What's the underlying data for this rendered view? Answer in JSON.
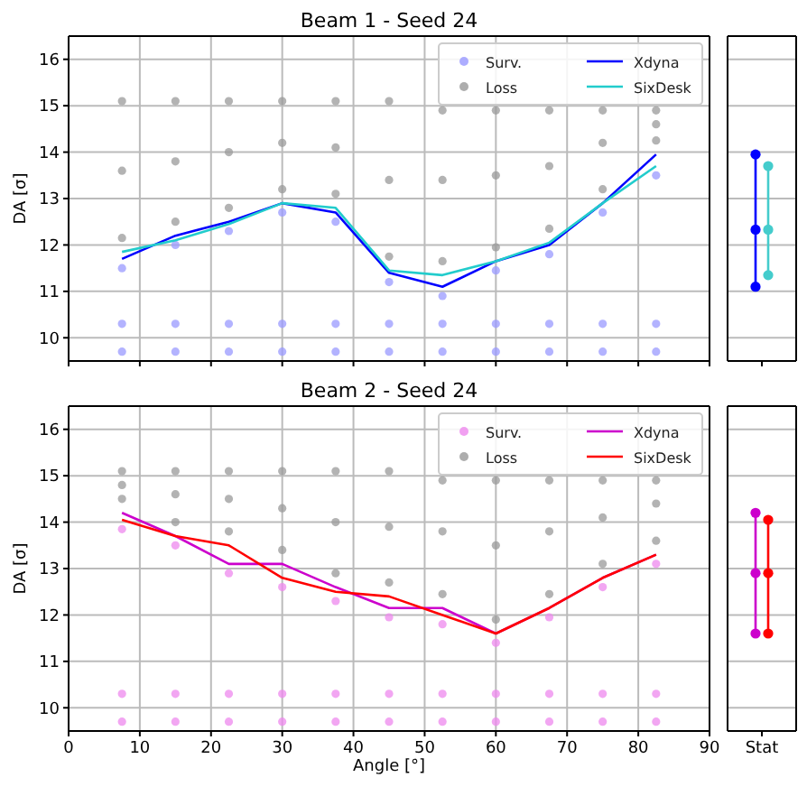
{
  "chart_data": [
    {
      "type": "scatter",
      "title": "Beam 1 - Seed 24",
      "ylabel": "DA [σ]",
      "xlim": [
        0,
        90
      ],
      "xticks": [
        0,
        10,
        20,
        30,
        40,
        50,
        60,
        70,
        80,
        90
      ],
      "ylim": [
        9.5,
        16.5
      ],
      "yticks": [
        10,
        11,
        12,
        13,
        14,
        15,
        16
      ],
      "grid": true,
      "legend": "top right",
      "tick_labels": "y",
      "series": [
        {
          "name": "Surv.",
          "color": "#9999ff",
          "marker": "circle",
          "x": [
            7.5,
            7.5,
            7.5,
            15,
            15,
            15,
            22.5,
            22.5,
            22.5,
            30,
            30,
            30,
            37.5,
            37.5,
            37.5,
            45,
            45,
            45,
            52.5,
            52.5,
            52.5,
            60,
            60,
            60,
            67.5,
            67.5,
            67.5,
            75,
            75,
            75,
            82.5,
            82.5,
            82.5
          ],
          "values": [
            9.7,
            10.3,
            11.5,
            9.7,
            10.3,
            12.0,
            9.7,
            10.3,
            12.3,
            9.7,
            10.3,
            12.7,
            9.7,
            10.3,
            12.5,
            9.7,
            10.3,
            11.2,
            9.7,
            10.3,
            10.9,
            9.7,
            10.3,
            11.45,
            9.7,
            10.3,
            11.8,
            9.7,
            10.3,
            12.7,
            9.7,
            10.3,
            13.5
          ]
        },
        {
          "name": "Loss",
          "color": "#999999",
          "marker": "circle",
          "x": [
            7.5,
            7.5,
            7.5,
            15,
            15,
            15,
            22.5,
            22.5,
            22.5,
            30,
            30,
            30,
            37.5,
            37.5,
            37.5,
            45,
            45,
            45,
            52.5,
            52.5,
            52.5,
            60,
            60,
            60,
            67.5,
            67.5,
            67.5,
            75,
            75,
            75,
            82.5,
            82.5,
            82.5
          ],
          "values": [
            12.15,
            13.6,
            15.1,
            12.5,
            13.8,
            15.1,
            12.8,
            14.0,
            15.1,
            13.2,
            14.2,
            15.1,
            13.1,
            14.1,
            15.1,
            11.75,
            13.4,
            15.1,
            11.65,
            13.4,
            14.9,
            11.95,
            13.5,
            14.9,
            12.35,
            13.7,
            14.9,
            13.2,
            14.2,
            14.9,
            14.25,
            14.6,
            14.9
          ]
        },
        {
          "name": "Xdyna",
          "type": "line",
          "color": "#0000ff",
          "marker": "none",
          "x": [
            7.5,
            15,
            22.5,
            30,
            37.5,
            45,
            52.5,
            60,
            67.5,
            75,
            82.5
          ],
          "values": [
            11.7,
            12.2,
            12.5,
            12.9,
            12.7,
            11.4,
            11.1,
            11.65,
            12.0,
            12.9,
            13.95
          ]
        },
        {
          "name": "SixDesk",
          "type": "line",
          "color": "#22cccc",
          "marker": "none",
          "x": [
            7.5,
            15,
            22.5,
            30,
            37.5,
            45,
            52.5,
            60,
            67.5,
            75,
            82.5
          ],
          "values": [
            11.85,
            12.1,
            12.45,
            12.9,
            12.8,
            11.45,
            11.35,
            11.65,
            12.05,
            12.9,
            13.7
          ]
        }
      ]
    },
    {
      "type": "line",
      "categories": [
        "Stat"
      ],
      "ylim": [
        9.5,
        16.5
      ],
      "yticks": [
        10,
        11,
        12,
        13,
        14,
        15,
        16
      ],
      "grid": true,
      "tick_labels": false,
      "marker": "circle",
      "series": [
        {
          "color": "#0000ff",
          "x": [
            "Stat",
            "Stat",
            "Stat"
          ],
          "values": [
            11.1,
            12.33,
            13.95
          ]
        },
        {
          "color": "#44cccc",
          "x": [
            "Stat",
            "Stat",
            "Stat"
          ],
          "values": [
            11.35,
            12.33,
            13.7
          ]
        }
      ]
    },
    {
      "type": "scatter",
      "title": "Beam 2 - Seed 24",
      "xlabel": "Angle [°]",
      "ylabel": "DA [σ]",
      "xlim": [
        0,
        90
      ],
      "xticks": [
        0,
        10,
        20,
        30,
        40,
        50,
        60,
        70,
        80,
        90
      ],
      "ylim": [
        9.5,
        16.5
      ],
      "yticks": [
        10,
        11,
        12,
        13,
        14,
        15,
        16
      ],
      "grid": true,
      "legend": "top right",
      "series": [
        {
          "name": "Surv.",
          "color": "#ee88ee",
          "marker": "circle",
          "x": [
            7.5,
            7.5,
            7.5,
            15,
            15,
            15,
            22.5,
            22.5,
            22.5,
            30,
            30,
            30,
            37.5,
            37.5,
            37.5,
            45,
            45,
            45,
            52.5,
            52.5,
            52.5,
            60,
            60,
            60,
            67.5,
            67.5,
            67.5,
            75,
            75,
            75,
            82.5,
            82.5,
            82.5
          ],
          "values": [
            9.7,
            10.3,
            13.85,
            9.7,
            10.3,
            13.5,
            9.7,
            10.3,
            12.9,
            9.7,
            10.3,
            12.6,
            9.7,
            10.3,
            12.3,
            9.7,
            10.3,
            11.95,
            9.7,
            10.3,
            11.8,
            9.7,
            10.3,
            11.4,
            9.7,
            10.3,
            11.95,
            9.7,
            10.3,
            12.6,
            9.7,
            10.3,
            13.1
          ]
        },
        {
          "name": "Loss",
          "color": "#999999",
          "marker": "circle",
          "x": [
            7.5,
            7.5,
            7.5,
            15,
            15,
            15,
            22.5,
            22.5,
            22.5,
            30,
            30,
            30,
            37.5,
            37.5,
            37.5,
            45,
            45,
            45,
            52.5,
            52.5,
            52.5,
            60,
            60,
            60,
            67.5,
            67.5,
            67.5,
            75,
            75,
            75,
            82.5,
            82.5,
            82.5
          ],
          "values": [
            14.5,
            14.8,
            15.1,
            14.0,
            14.6,
            15.1,
            13.8,
            14.5,
            15.1,
            13.4,
            14.3,
            15.1,
            12.9,
            14.0,
            15.1,
            12.7,
            13.9,
            15.1,
            12.45,
            13.8,
            14.9,
            11.9,
            13.5,
            14.9,
            12.45,
            13.8,
            14.9,
            13.1,
            14.1,
            14.9,
            13.6,
            14.4,
            14.9
          ]
        },
        {
          "name": "Xdyna",
          "type": "line",
          "color": "#cc00cc",
          "marker": "none",
          "x": [
            7.5,
            15,
            22.5,
            30,
            37.5,
            45,
            52.5,
            60,
            67.5,
            75,
            82.5
          ],
          "values": [
            14.2,
            13.7,
            13.1,
            13.1,
            12.6,
            12.15,
            12.15,
            11.6,
            12.15,
            12.8,
            13.3
          ]
        },
        {
          "name": "SixDesk",
          "type": "line",
          "color": "#ff0000",
          "marker": "none",
          "x": [
            7.5,
            15,
            22.5,
            30,
            37.5,
            45,
            52.5,
            60,
            67.5,
            75,
            82.5
          ],
          "values": [
            14.05,
            13.7,
            13.5,
            12.8,
            12.5,
            12.4,
            12.0,
            11.6,
            12.15,
            12.8,
            13.3
          ]
        }
      ]
    },
    {
      "type": "line",
      "categories": [
        "Stat"
      ],
      "ylim": [
        9.5,
        16.5
      ],
      "yticks": [
        10,
        11,
        12,
        13,
        14,
        15,
        16
      ],
      "grid": true,
      "tick_labels": "x",
      "marker": "circle",
      "series": [
        {
          "color": "#cc00cc",
          "x": [
            "Stat",
            "Stat",
            "Stat"
          ],
          "values": [
            11.6,
            12.9,
            14.2
          ]
        },
        {
          "color": "#ff0000",
          "x": [
            "Stat",
            "Stat",
            "Stat"
          ],
          "values": [
            11.6,
            12.9,
            14.05
          ]
        }
      ]
    }
  ]
}
